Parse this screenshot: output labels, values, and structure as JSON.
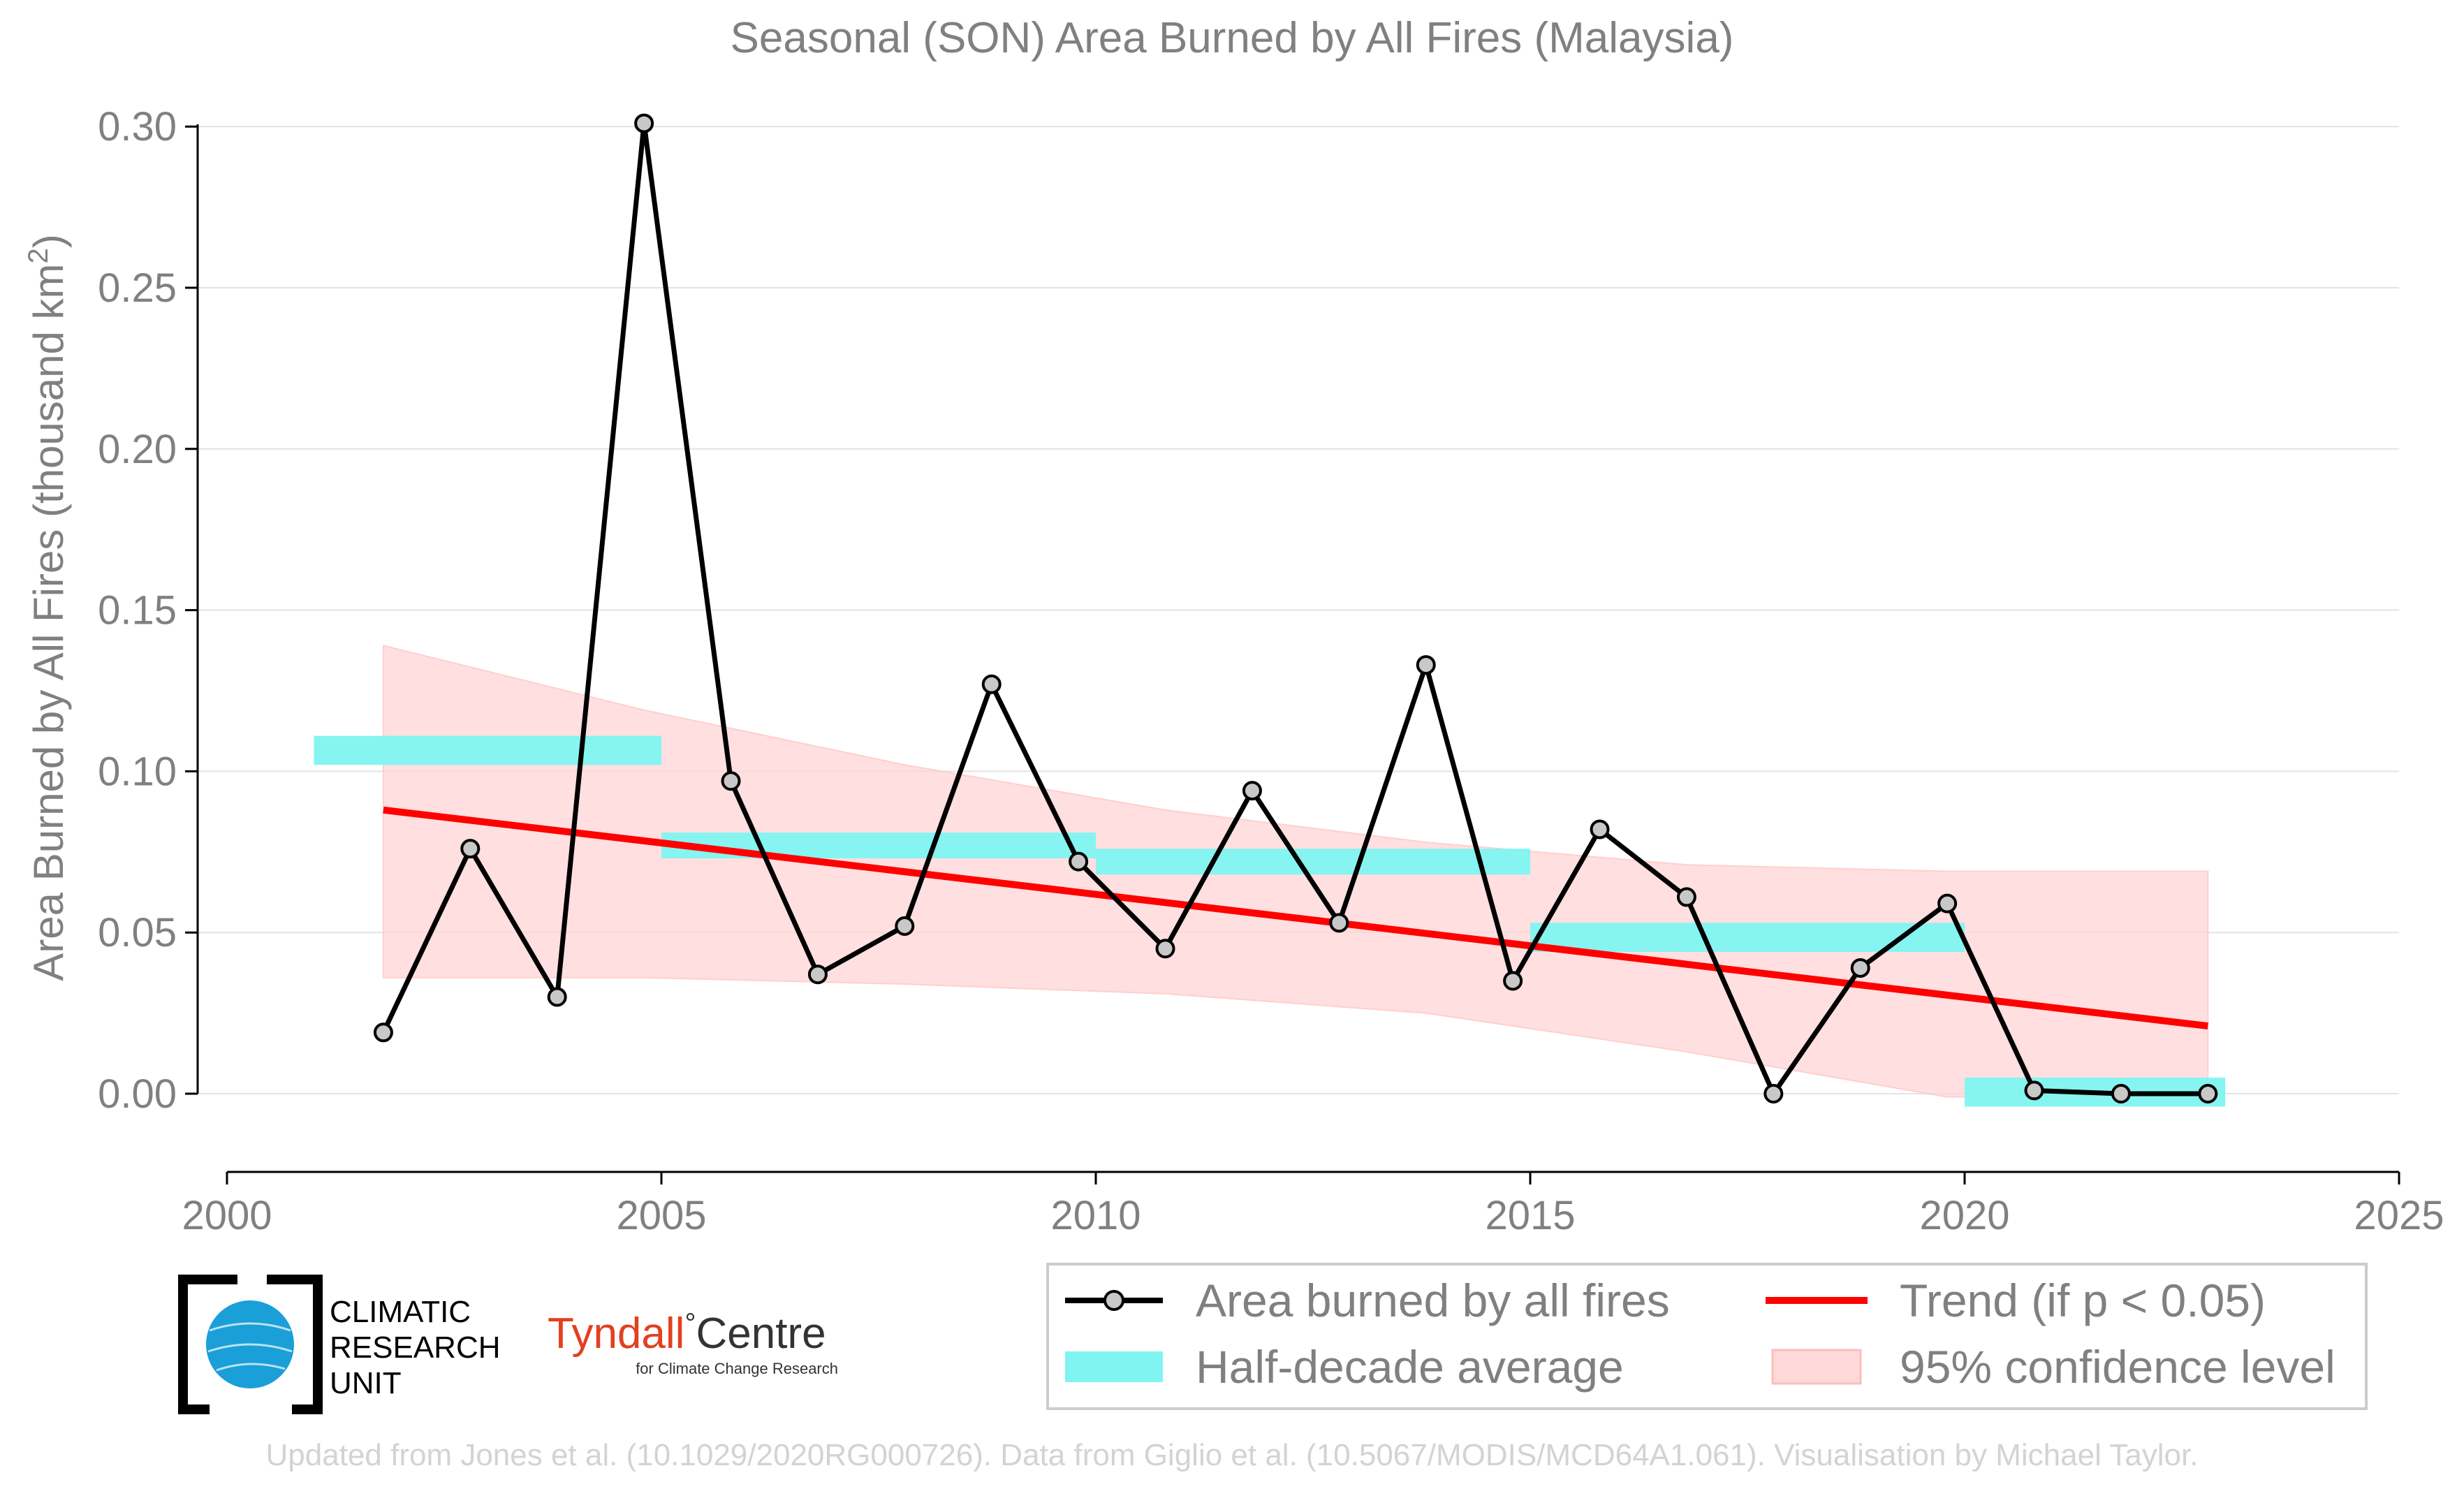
{
  "chart_data": {
    "type": "line",
    "title": "Seasonal (SON) Area Burned by All Fires (Malaysia)",
    "ylabel_main": "Area Burned by All Fires (thousand km",
    "ylabel_sup": "2",
    "ylabel_close": ")",
    "xlabel": "",
    "xlim": [
      2000,
      2025
    ],
    "ylim": [
      -0.018,
      0.301
    ],
    "x_ticks": [
      "2000",
      "2005",
      "2010",
      "2015",
      "2020",
      "2025"
    ],
    "y_ticks": [
      "0.00",
      "0.05",
      "0.10",
      "0.15",
      "0.20",
      "0.25",
      "0.30"
    ],
    "grid": "horizontal",
    "series": [
      {
        "name": "Area burned by all fires",
        "color": "#000000",
        "marker_fill": "#c8c8c8",
        "x": [
          2001.8,
          2002.8,
          2003.8,
          2004.8,
          2005.8,
          2006.8,
          2007.8,
          2008.8,
          2009.8,
          2010.8,
          2011.8,
          2012.8,
          2013.8,
          2014.8,
          2015.8,
          2016.8,
          2017.8,
          2018.8,
          2019.8,
          2020.8,
          2021.8,
          2022.8
        ],
        "y": [
          0.019,
          0.076,
          0.03,
          0.301,
          0.097,
          0.037,
          0.052,
          0.127,
          0.072,
          0.045,
          0.094,
          0.053,
          0.133,
          0.035,
          0.082,
          0.061,
          0.0,
          0.039,
          0.059,
          0.001,
          0.0,
          0.0
        ]
      }
    ],
    "half_decade_average": {
      "name": "Half-decade average",
      "color": "#7ff4f0",
      "segments": [
        {
          "x0": 2001,
          "x1": 2005,
          "y0": 0.102,
          "y1": 0.111
        },
        {
          "x0": 2005,
          "x1": 2010,
          "y0": 0.073,
          "y1": 0.081
        },
        {
          "x0": 2010,
          "x1": 2015,
          "y0": 0.068,
          "y1": 0.076
        },
        {
          "x0": 2015,
          "x1": 2020,
          "y0": 0.044,
          "y1": 0.053
        },
        {
          "x0": 2020,
          "x1": 2023,
          "y0": -0.004,
          "y1": 0.005
        }
      ]
    },
    "trend": {
      "name": "Trend (if p < 0.05)",
      "color": "#ff0000",
      "x": [
        2001.8,
        2022.8
      ],
      "y": [
        0.088,
        0.021
      ]
    },
    "confidence": {
      "name": "95% confidence level",
      "color": "#ffd8d8",
      "x": [
        2001.8,
        2004.8,
        2007.8,
        2010.8,
        2013.8,
        2016.8,
        2019.8,
        2022.8
      ],
      "upper": [
        0.139,
        0.119,
        0.102,
        0.088,
        0.078,
        0.071,
        0.069,
        0.069
      ],
      "lower": [
        0.036,
        0.036,
        0.034,
        0.031,
        0.025,
        0.013,
        -0.001,
        -0.001
      ]
    },
    "legend_position": "bottom-right"
  },
  "legend": {
    "area_burned": "Area burned by all fires",
    "trend": "Trend (if p < 0.05)",
    "half_decade": "Half-decade average",
    "confidence": "95% confidence level"
  },
  "logos": {
    "cru_line1": "CLIMATIC",
    "cru_line2": "RESEARCH",
    "cru_line3": "UNIT",
    "tyndall_name": "Tyndall",
    "tyndall_degree": "°",
    "tyndall_centre": "Centre",
    "tyndall_sub": "for Climate Change Research"
  },
  "footer": "Updated from Jones et al. (10.1029/2020RG000726). Data from Giglio et al. (10.5067/MODIS/MCD64A1.061). Visualisation by Michael Taylor."
}
